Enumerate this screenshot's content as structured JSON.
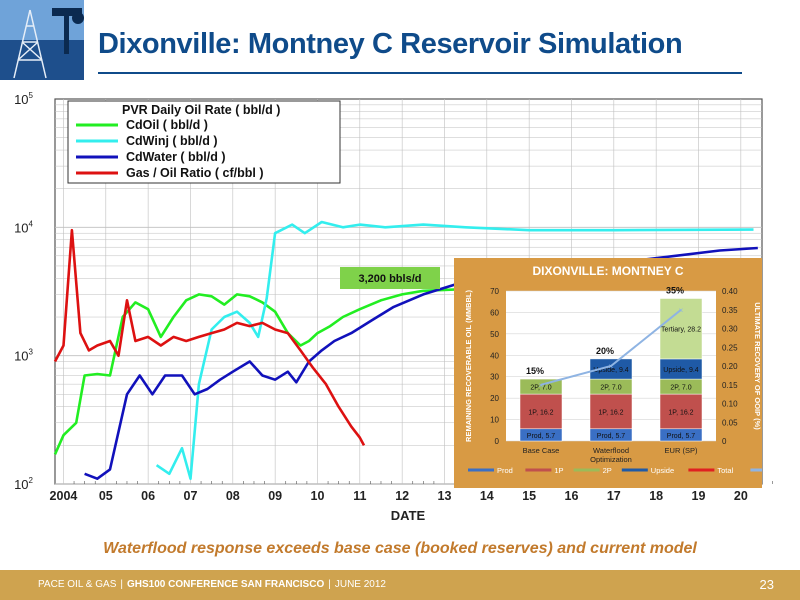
{
  "slide": {
    "title": "Dixonville: Montney C Reservoir Simulation",
    "caption": "Waterflood response exceeds base case (booked reserves) and current model",
    "footer": {
      "company": "PACE OIL & GAS",
      "conference": "GHS100 CONFERENCE SAN FRANCISCO",
      "date": "JUNE 2012"
    },
    "page_number": "23",
    "callout": "3,200 bbls/d"
  },
  "colors": {
    "title": "#0f4b8a",
    "caption": "#c27a2c",
    "footer": "#cfa34f",
    "callout": "#7fd24a",
    "inset_bg": "#d89a44",
    "oil": "#22ee22",
    "winj": "#33eeee",
    "water": "#1111bb",
    "gor": "#dd1111"
  },
  "chart_data": [
    {
      "type": "line",
      "y_scale": "log",
      "ylim": [
        100,
        100000
      ],
      "y_ticks": [
        "10^5",
        "10^4",
        "10^3",
        "10^2"
      ],
      "xlabel": "DATE",
      "x_ticks": [
        "2004",
        "05",
        "06",
        "07",
        "08",
        "09",
        "10",
        "11",
        "12",
        "13",
        "14",
        "15",
        "16",
        "17",
        "18",
        "19",
        "20"
      ],
      "legend_title": "PVR Daily Oil Rate ( bbl/d )",
      "legend_position": "top-left",
      "series": [
        {
          "name": "CdOil ( bbl/d )",
          "color": "#22ee22",
          "points": [
            [
              2003.8,
              170
            ],
            [
              2004.0,
              240
            ],
            [
              2004.3,
              300
            ],
            [
              2004.5,
              700
            ],
            [
              2004.8,
              720
            ],
            [
              2005.1,
              700
            ],
            [
              2005.4,
              2000
            ],
            [
              2005.7,
              2600
            ],
            [
              2006.0,
              2300
            ],
            [
              2006.3,
              1400
            ],
            [
              2006.6,
              2000
            ],
            [
              2006.9,
              2700
            ],
            [
              2007.2,
              3000
            ],
            [
              2007.5,
              2900
            ],
            [
              2007.8,
              2500
            ],
            [
              2008.1,
              3000
            ],
            [
              2008.4,
              2900
            ],
            [
              2008.7,
              2600
            ],
            [
              2009.0,
              2200
            ],
            [
              2009.3,
              1500
            ],
            [
              2009.6,
              1200
            ],
            [
              2009.8,
              1300
            ],
            [
              2010.0,
              1500
            ],
            [
              2010.3,
              1700
            ],
            [
              2010.6,
              2000
            ],
            [
              2011.0,
              2300
            ],
            [
              2011.5,
              2700
            ],
            [
              2012.0,
              3000
            ],
            [
              2012.5,
              3200
            ],
            [
              2013.5,
              3300
            ]
          ]
        },
        {
          "name": "CdWinj ( bbl/d )",
          "color": "#33eeee",
          "points": [
            [
              2006.2,
              140
            ],
            [
              2006.5,
              120
            ],
            [
              2006.8,
              190
            ],
            [
              2007.0,
              110
            ],
            [
              2007.2,
              600
            ],
            [
              2007.5,
              1600
            ],
            [
              2007.8,
              2000
            ],
            [
              2008.1,
              2200
            ],
            [
              2008.4,
              1800
            ],
            [
              2008.6,
              1400
            ],
            [
              2008.8,
              2800
            ],
            [
              2009.0,
              9000
            ],
            [
              2009.4,
              10500
            ],
            [
              2009.7,
              9000
            ],
            [
              2010.1,
              11000
            ],
            [
              2010.6,
              10000
            ],
            [
              2011.0,
              10500
            ],
            [
              2011.6,
              10000
            ],
            [
              2012.5,
              10500
            ],
            [
              2013.5,
              10000
            ],
            [
              2015,
              9500
            ],
            [
              2017,
              9500
            ],
            [
              2020.3,
              9600
            ]
          ]
        },
        {
          "name": "CdWater ( bbl/d )",
          "color": "#1111bb",
          "points": [
            [
              2004.5,
              120
            ],
            [
              2004.8,
              110
            ],
            [
              2005.1,
              130
            ],
            [
              2005.5,
              500
            ],
            [
              2005.8,
              700
            ],
            [
              2006.1,
              500
            ],
            [
              2006.4,
              700
            ],
            [
              2006.8,
              700
            ],
            [
              2007.1,
              500
            ],
            [
              2007.4,
              550
            ],
            [
              2007.7,
              650
            ],
            [
              2008.0,
              750
            ],
            [
              2008.4,
              900
            ],
            [
              2008.7,
              700
            ],
            [
              2009.0,
              650
            ],
            [
              2009.3,
              750
            ],
            [
              2009.5,
              620
            ],
            [
              2009.8,
              900
            ],
            [
              2010.1,
              1100
            ],
            [
              2010.4,
              1300
            ],
            [
              2010.8,
              1500
            ],
            [
              2011.3,
              1900
            ],
            [
              2011.8,
              2400
            ],
            [
              2012.5,
              3000
            ],
            [
              2013.5,
              3800
            ],
            [
              2015.5,
              4700
            ],
            [
              2017.5,
              5500
            ],
            [
              2019.5,
              6600
            ],
            [
              2020.4,
              6900
            ]
          ]
        },
        {
          "name": "Gas / Oil Ratio ( cf/bbl )",
          "color": "#dd1111",
          "points": [
            [
              2003.8,
              900
            ],
            [
              2004.0,
              1200
            ],
            [
              2004.2,
              9500
            ],
            [
              2004.4,
              1500
            ],
            [
              2004.6,
              1100
            ],
            [
              2004.8,
              1200
            ],
            [
              2005.1,
              1300
            ],
            [
              2005.3,
              1000
            ],
            [
              2005.5,
              2700
            ],
            [
              2005.7,
              1300
            ],
            [
              2006.0,
              1400
            ],
            [
              2006.3,
              1200
            ],
            [
              2006.6,
              1400
            ],
            [
              2006.9,
              1300
            ],
            [
              2007.2,
              1400
            ],
            [
              2007.5,
              1500
            ],
            [
              2007.8,
              1600
            ],
            [
              2008.1,
              1800
            ],
            [
              2008.4,
              1700
            ],
            [
              2008.7,
              1800
            ],
            [
              2009.0,
              1600
            ],
            [
              2009.3,
              1500
            ],
            [
              2009.6,
              1100
            ],
            [
              2009.9,
              800
            ],
            [
              2010.2,
              600
            ],
            [
              2010.5,
              400
            ],
            [
              2010.8,
              280
            ],
            [
              2011.0,
              230
            ],
            [
              2011.1,
              200
            ]
          ]
        }
      ]
    },
    {
      "type": "bar",
      "title": "DIXONVILLE: MONTNEY C",
      "ylabel": "REMAINING RECOVERABLE OIL (MMBBL)",
      "y2label": "ULTIMATE RECOVERY OF OOIP (%)",
      "ylim": [
        0,
        70
      ],
      "y_ticks": [
        "0",
        "10",
        "20",
        "30",
        "40",
        "50",
        "60",
        "70"
      ],
      "y2lim": [
        0,
        0.4
      ],
      "y2_ticks": [
        "0",
        "0.05",
        "0.10",
        "0.15",
        "0.20",
        "0.25",
        "0.30",
        "0.35",
        "0.40"
      ],
      "categories": [
        "Base Case",
        "Waterflood Optimization",
        "EUR (SP)"
      ],
      "category_labels": [
        "Base Case",
        "Waterflood",
        "EUR (SP)"
      ],
      "category_sublabels": [
        "",
        "Optimization",
        ""
      ],
      "stack_segments": [
        {
          "name": "Prod",
          "color": "#3a6fc4",
          "values": [
            5.7,
            5.7,
            5.7
          ],
          "labels": [
            "Prod, 5.7",
            "Prod, 5.7",
            "Prod, 5.7"
          ]
        },
        {
          "name": "1P",
          "color": "#c0504d",
          "values": [
            16.2,
            16.2,
            16.2
          ],
          "labels": [
            "1P, 16.2",
            "1P, 16.2",
            "1P, 16.2"
          ]
        },
        {
          "name": "2P",
          "color": "#9bbb59",
          "values": [
            7.0,
            7.0,
            7.0
          ],
          "labels": [
            "2P, 7.0",
            "2P, 7.0",
            "2P, 7.0"
          ]
        },
        {
          "name": "Upside",
          "color": "#1f5aa6",
          "values": [
            0,
            9.4,
            9.4
          ],
          "labels": [
            "",
            "Upside, 9.4",
            "Upside, 9.4"
          ]
        },
        {
          "name": "Tertiary",
          "color": "#c3dc93",
          "values": [
            0,
            0,
            28.2
          ],
          "labels": [
            "",
            "",
            "Tertiary, 28.2"
          ]
        }
      ],
      "pct_labels": [
        "15%",
        "20%",
        "35%"
      ],
      "ooip_rec": [
        0.15,
        0.2,
        0.35
      ],
      "legend": [
        {
          "name": "Prod",
          "color": "#3a6fc4"
        },
        {
          "name": "1P",
          "color": "#c0504d"
        },
        {
          "name": "2P",
          "color": "#9bbb59"
        },
        {
          "name": "Upside",
          "color": "#1f5aa6"
        },
        {
          "name": "Total",
          "color": "#e02020"
        },
        {
          "name": "OOIP Rec.",
          "color": "#8fb4e3"
        }
      ],
      "legend_position": "bottom"
    }
  ]
}
